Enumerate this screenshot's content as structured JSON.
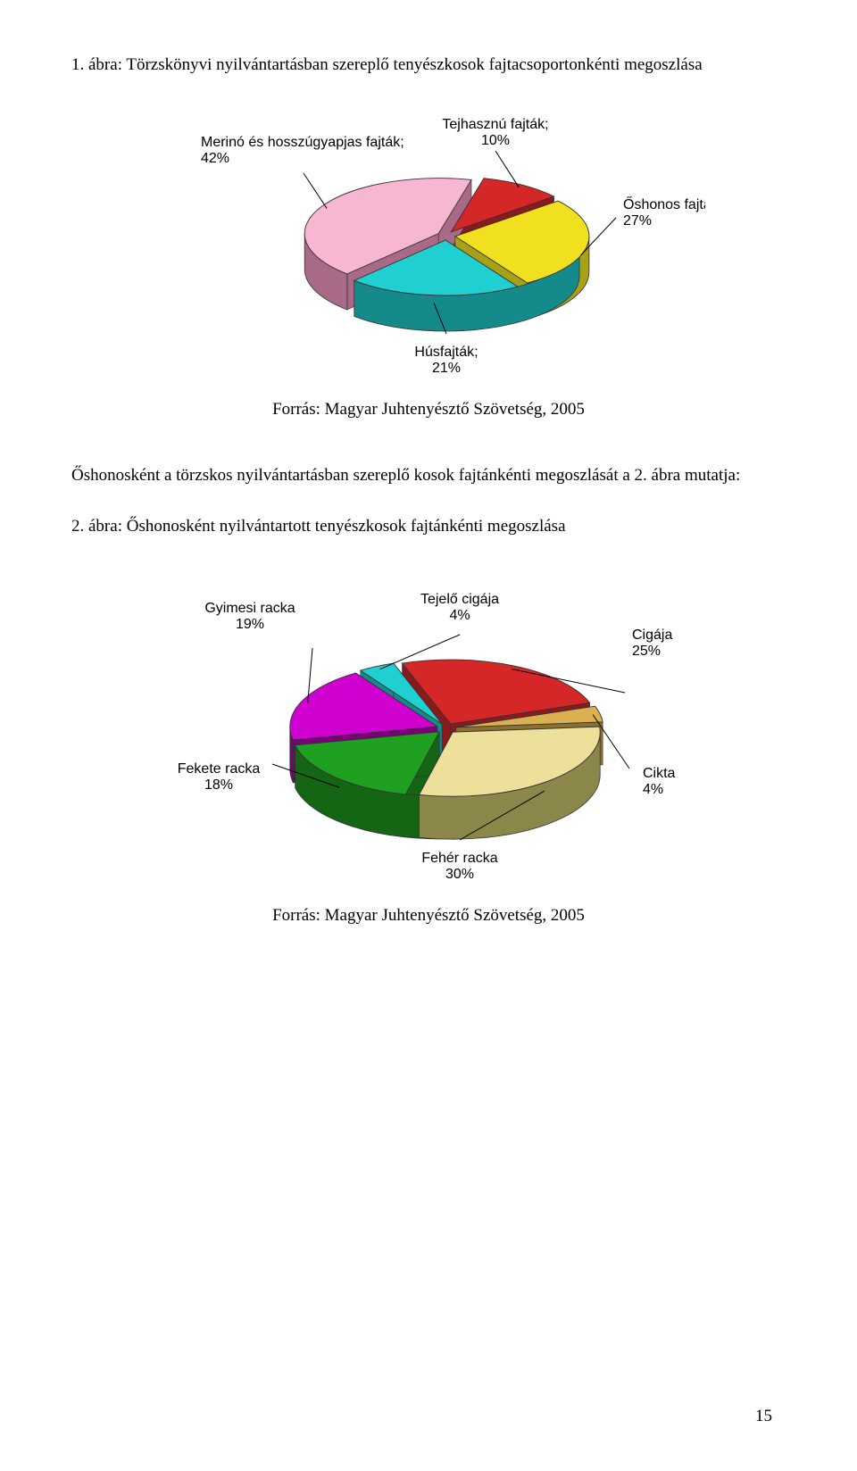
{
  "figure1": {
    "title_line": "1. ábra: Törzskönyvi nyilvántartásban szereplő tenyészkosok fajtacsoportonkénti megoszlása",
    "source": "Forrás: Magyar Juhtenyésztő Szövetség, 2005",
    "type": "pie",
    "slices": [
      {
        "label": "Merinó és hosszúgyapjas fajták;",
        "value_label": "42%",
        "value": 42,
        "color_top": "#f7b6d2",
        "color_side": "#a96a88"
      },
      {
        "label": "Tejhasznú fajták;",
        "value_label": "10%",
        "value": 10,
        "color_top": "#d62728",
        "color_side": "#8a1a1b"
      },
      {
        "label": "Őshonos fajták;",
        "value_label": "27%",
        "value": 27,
        "color_top": "#f0e020",
        "color_side": "#a8a018"
      },
      {
        "label": "Húsfajták;",
        "value_label": "21%",
        "value": 21,
        "color_top": "#20d0d0",
        "color_side": "#148a8a"
      }
    ],
    "background_color": "#ffffff",
    "label_fontsize": 16,
    "label_font": "Arial"
  },
  "body": {
    "between_text": "Őshonosként a törzskos nyilvántartásban szereplő kosok fajtánkénti megoszlását a 2. ábra mutatja:"
  },
  "figure2": {
    "title_line": "2. ábra: Őshonosként nyilvántartott tenyészkosok fajtánkénti megoszlása",
    "source": "Forrás: Magyar Juhtenyésztő Szövetség, 2005",
    "type": "pie",
    "slices": [
      {
        "label": "Gyimesi racka",
        "value_label": "19%",
        "value": 19,
        "color_top": "#d000d0",
        "color_side": "#7a007a"
      },
      {
        "label": "Tejelő cigája",
        "value_label": "4%",
        "value": 4,
        "color_top": "#20d0d0",
        "color_side": "#148a8a"
      },
      {
        "label": "Cigája",
        "value_label": "25%",
        "value": 25,
        "color_top": "#d62728",
        "color_side": "#8a1a1b"
      },
      {
        "label": "Cikta",
        "value_label": "4%",
        "value": 4,
        "color_top": "#dab050",
        "color_side": "#8b7030"
      },
      {
        "label": "Fehér racka",
        "value_label": "30%",
        "value": 30,
        "color_top": "#ece09a",
        "color_side": "#8b864a"
      },
      {
        "label": "Fekete racka",
        "value_label": "18%",
        "value": 18,
        "color_top": "#20a020",
        "color_side": "#146514"
      }
    ],
    "background_color": "#ffffff",
    "label_fontsize": 16,
    "label_font": "Arial"
  },
  "page_number": "15"
}
